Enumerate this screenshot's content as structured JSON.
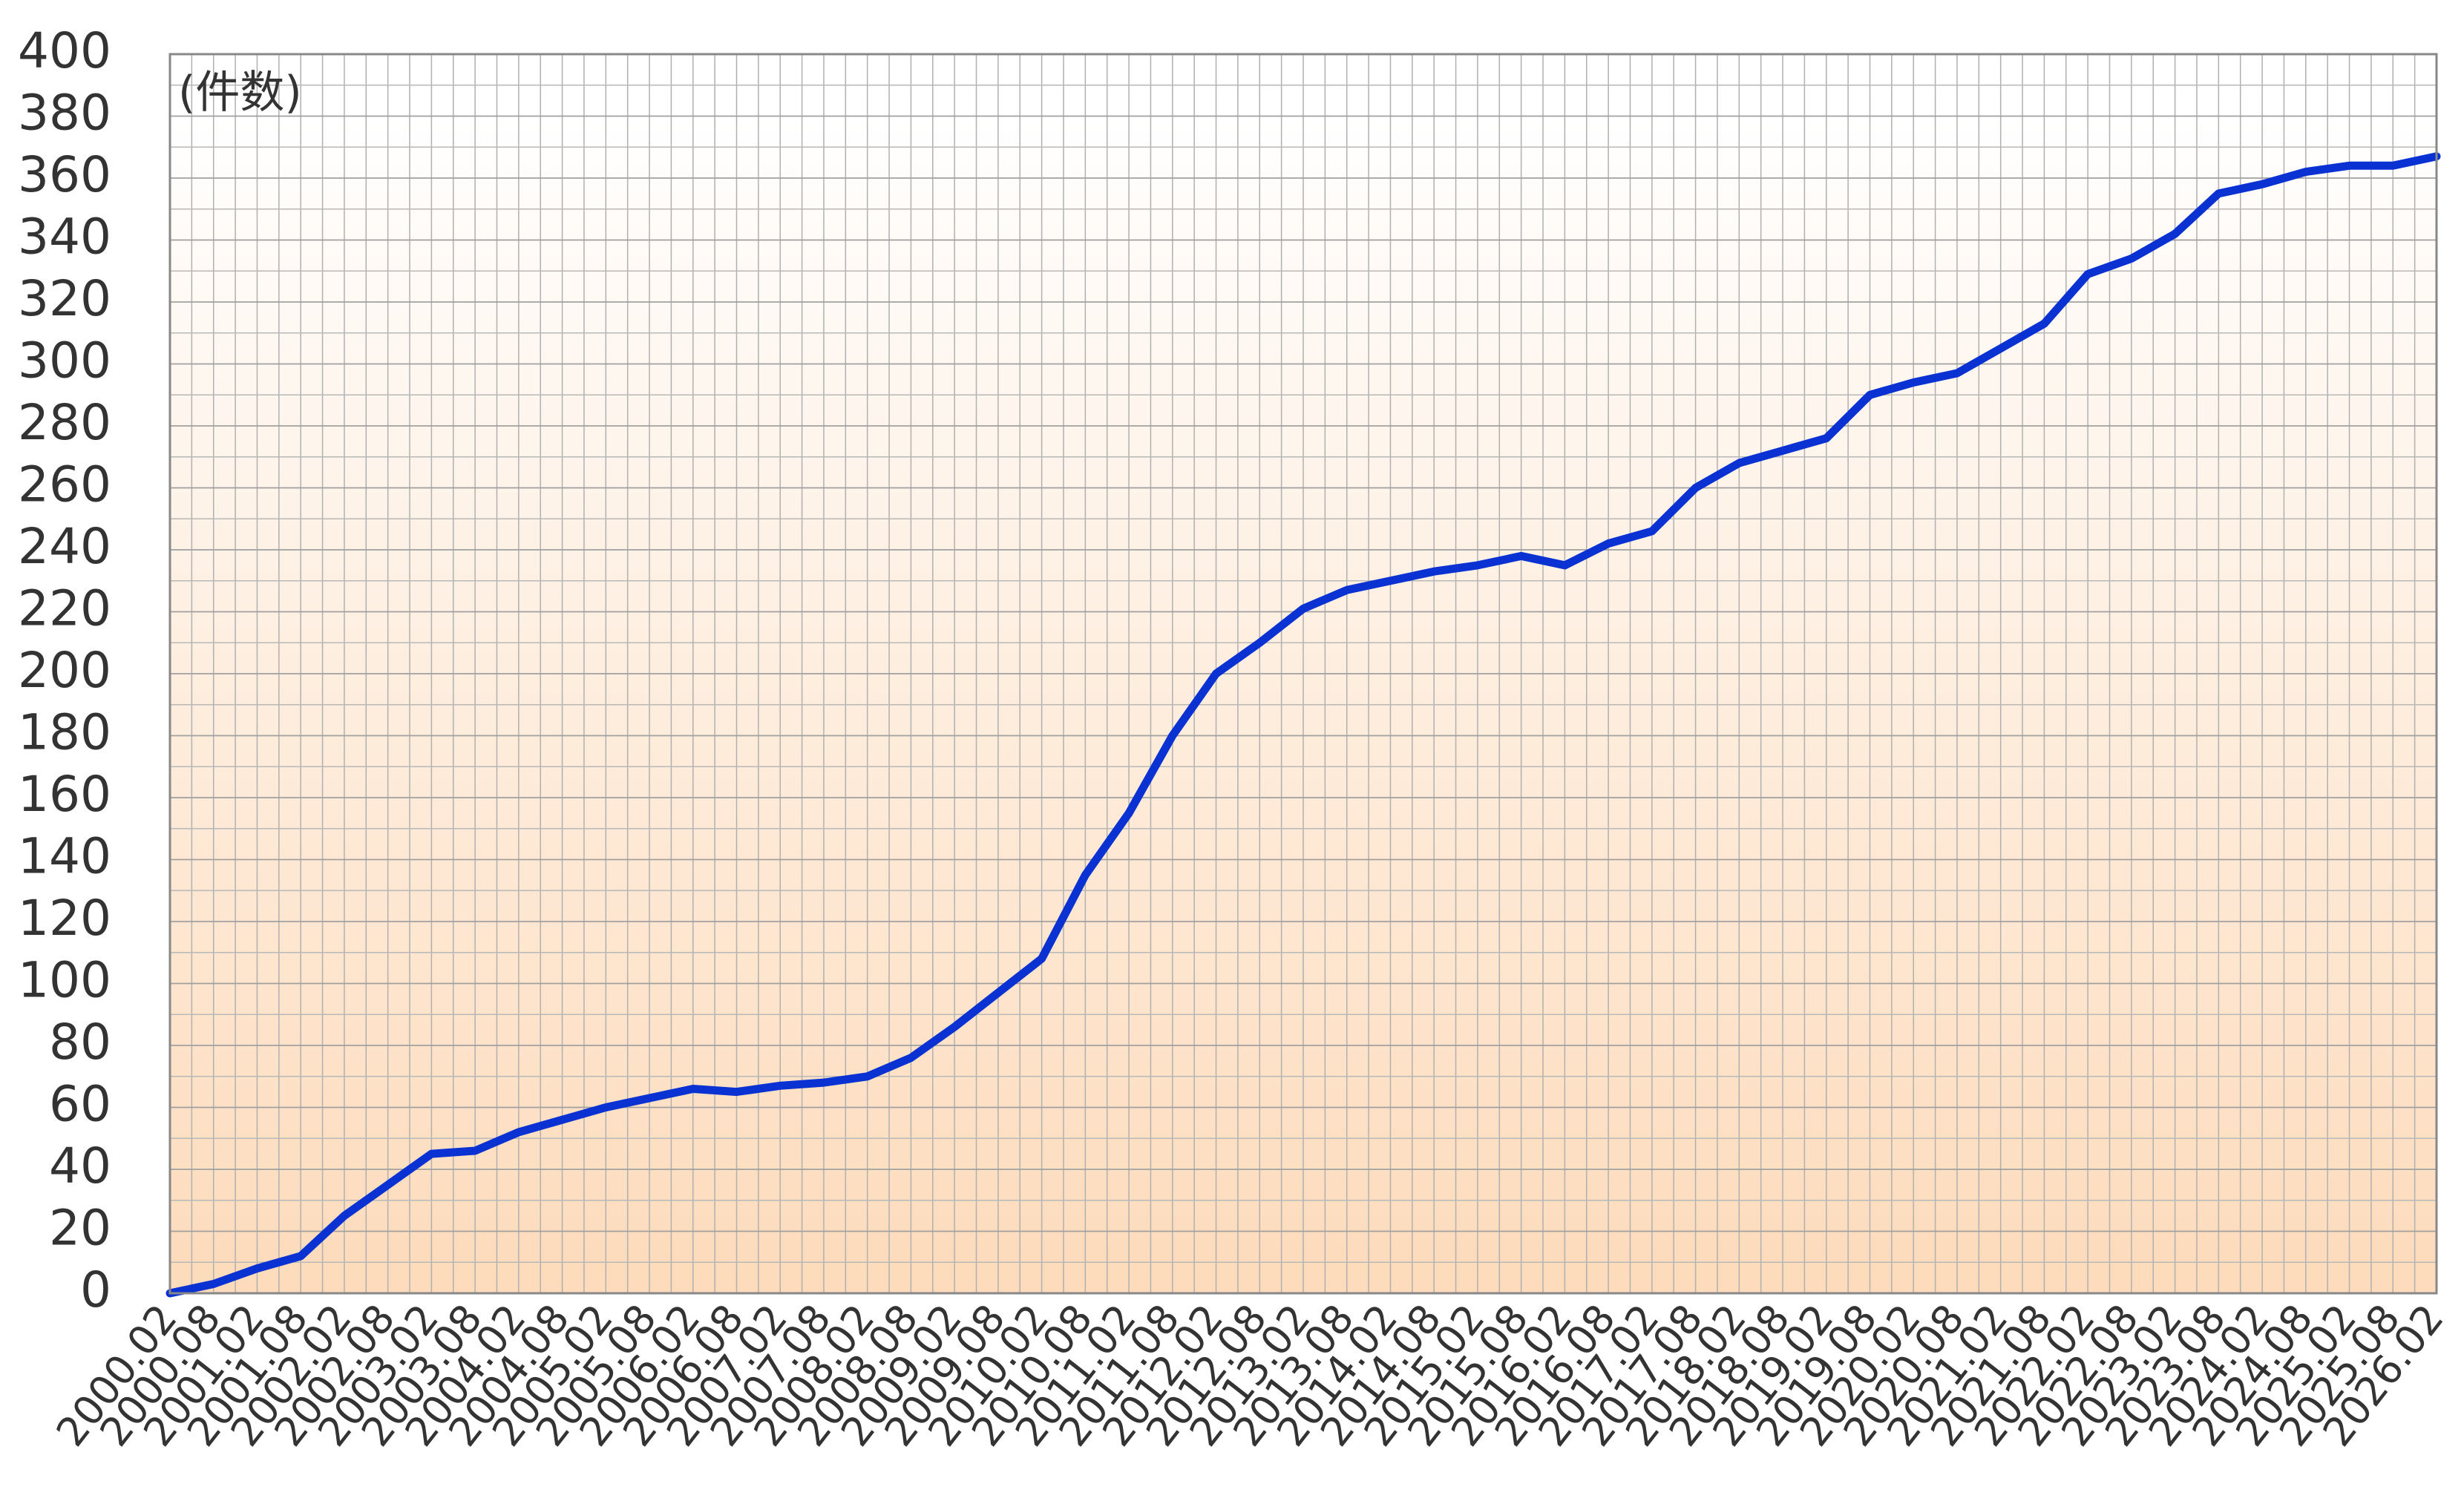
{
  "chart_data": {
    "type": "line",
    "y_unit_label": "(件数)",
    "categories": [
      "2000.02",
      "2000.08",
      "2001.02",
      "2001.08",
      "2002.02",
      "2002.08",
      "2003.02",
      "2003.08",
      "2004.02",
      "2004.08",
      "2005.02",
      "2005.08",
      "2006.02",
      "2006.08",
      "2007.02",
      "2007.08",
      "2008.02",
      "2008.08",
      "2009.02",
      "2009.08",
      "2010.02",
      "2010.08",
      "2011.02",
      "2011.08",
      "2012.02",
      "2012.08",
      "2013.02",
      "2013.08",
      "2014.02",
      "2014.08",
      "2015.02",
      "2015.08",
      "2016.02",
      "2016.08",
      "2017.02",
      "2017.08",
      "2018.02",
      "2018.08",
      "2019.02",
      "2019.08",
      "2020.02",
      "2020.08",
      "2021.02",
      "2021.08",
      "2022.02",
      "2022.08",
      "2023.02",
      "2023.08",
      "2024.02",
      "2024.08",
      "2025.02",
      "2025.08",
      "2026.02"
    ],
    "values": [
      0,
      3,
      8,
      12,
      25,
      35,
      45,
      46,
      52,
      56,
      60,
      63,
      66,
      65,
      67,
      68,
      70,
      76,
      86,
      97,
      108,
      135,
      155,
      180,
      200,
      210,
      221,
      227,
      230,
      233,
      235,
      238,
      235,
      242,
      246,
      260,
      268,
      272,
      276,
      290,
      294,
      297,
      305,
      313,
      329,
      334,
      342,
      355,
      358,
      362,
      364,
      364,
      367
    ],
    "color": "#0a32d2",
    "ylim": [
      0,
      400
    ],
    "yticks": [
      0,
      20,
      40,
      60,
      80,
      100,
      120,
      140,
      160,
      180,
      200,
      220,
      240,
      260,
      280,
      300,
      320,
      340,
      360,
      380,
      400
    ],
    "grid": true
  }
}
